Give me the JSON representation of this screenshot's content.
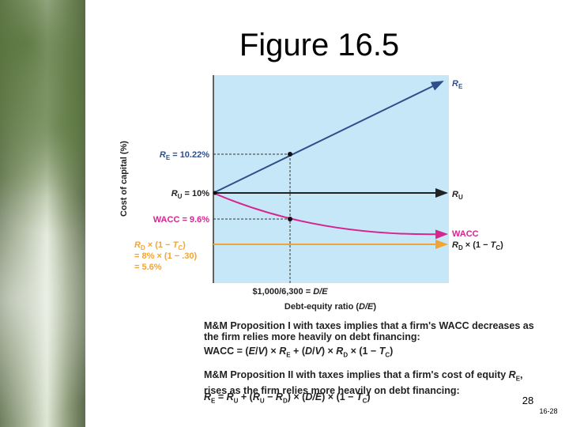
{
  "title": "Figure 16.5",
  "figure": {
    "y_axis_label": "Cost of capital (%)",
    "x_axis_label": [
      "Debt-equity ratio (",
      "D/E",
      ")"
    ],
    "x_marker_label": [
      "$1,000/6,300 = ",
      "D/E"
    ],
    "left_labels": {
      "re": [
        "R",
        "E",
        " = 10.22%"
      ],
      "ru": [
        "R",
        "U",
        " = 10%"
      ],
      "wacc": "WACC = 9.6%",
      "rd_line1": [
        "R",
        "D",
        " × (1 − ",
        "T",
        "C",
        ")"
      ],
      "rd_line2": "= 8% × (1 − .30)",
      "rd_line3": "= 5.6%"
    },
    "right_labels": {
      "re": [
        "R",
        "E"
      ],
      "ru": [
        "R",
        "U"
      ],
      "wacc": "WACC",
      "rd": [
        "R",
        "D",
        " × (1 − ",
        "T",
        "C",
        ")"
      ]
    }
  },
  "caption": {
    "p1": "M&M Proposition I with taxes implies that a firm's WACC decreases as the firm relies more heavily on debt financing:",
    "formula1": [
      "WACC = (",
      "E",
      "/",
      "V",
      ") × ",
      "R",
      "E",
      " + (",
      "D",
      "/",
      "V",
      ") × ",
      "R",
      "D",
      " × (1 − ",
      "T",
      "C",
      ")"
    ],
    "p2": [
      "M&M Proposition II with taxes implies that a firm's cost of equity ",
      "R",
      "E",
      ", rises as the firm relies more heavily on debt financing:"
    ],
    "formula2": [
      "R",
      "E",
      " = ",
      "R",
      "U",
      " + (",
      "R",
      "U",
      " − ",
      "R",
      "D",
      ") × (",
      "D/E",
      ") × (1 − ",
      "T",
      "C",
      ")"
    ]
  },
  "page_number": "28",
  "slide_id": "16-28"
}
